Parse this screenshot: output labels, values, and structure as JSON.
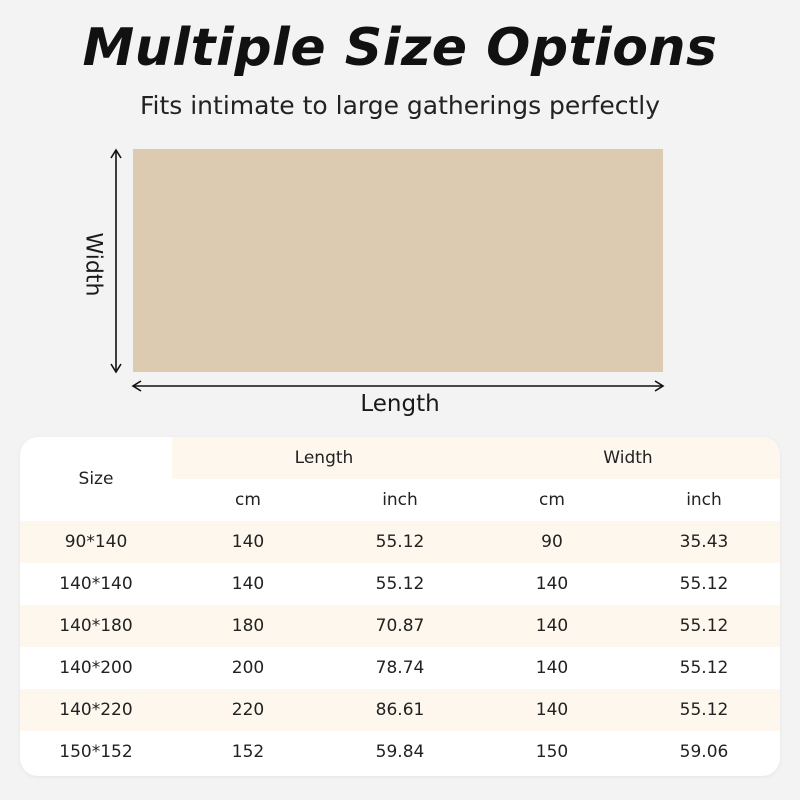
{
  "title": "Multiple Size Options",
  "subtitle": "Fits intimate to large gatherings perfectly",
  "diagram": {
    "width_label": "Width",
    "length_label": "Length",
    "rug_color": "#dccbb1"
  },
  "colors": {
    "background": "#f3f3f3",
    "stripe": "#fdf7ee",
    "header_fill": "#fdf7ee"
  },
  "table": {
    "size_header": "Size",
    "groups": [
      "Length",
      "Width"
    ],
    "units": [
      "cm",
      "inch",
      "cm",
      "inch"
    ],
    "rows": [
      [
        "90*140",
        "140",
        "55.12",
        "90",
        "35.43"
      ],
      [
        "140*140",
        "140",
        "55.12",
        "140",
        "55.12"
      ],
      [
        "140*180",
        "180",
        "70.87",
        "140",
        "55.12"
      ],
      [
        "140*200",
        "200",
        "78.74",
        "140",
        "55.12"
      ],
      [
        "140*220",
        "220",
        "86.61",
        "140",
        "55.12"
      ],
      [
        "150*152",
        "152",
        "59.84",
        "150",
        "59.06"
      ]
    ]
  }
}
